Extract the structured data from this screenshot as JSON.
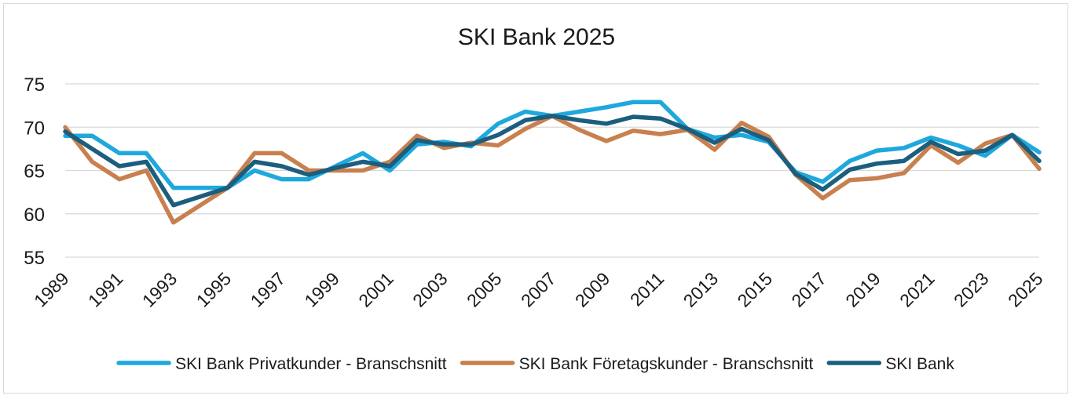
{
  "chart_data": {
    "type": "line",
    "title": "SKI Bank 2025",
    "xlabel": "",
    "ylabel": "",
    "ylim": [
      55,
      75
    ],
    "yticks": [
      55,
      60,
      65,
      70,
      75
    ],
    "grid": true,
    "legend_position": "bottom",
    "x": [
      1989,
      1990,
      1991,
      1992,
      1993,
      1994,
      1995,
      1996,
      1997,
      1998,
      1999,
      2000,
      2001,
      2002,
      2003,
      2004,
      2005,
      2006,
      2007,
      2008,
      2009,
      2010,
      2011,
      2012,
      2013,
      2014,
      2015,
      2016,
      2017,
      2018,
      2019,
      2020,
      2021,
      2022,
      2023,
      2024,
      2025
    ],
    "xtick_labels": [
      "1989",
      "1991",
      "1993",
      "1995",
      "1997",
      "1999",
      "2001",
      "2003",
      "2005",
      "2007",
      "2009",
      "2011",
      "2013",
      "2015",
      "2017",
      "2019",
      "2021",
      "2023",
      "2025"
    ],
    "series": [
      {
        "name": "SKI Bank Privatkunder - Branschsnitt",
        "color": "#1fa8dc",
        "values": [
          69,
          69,
          67,
          67,
          63,
          63,
          63,
          65,
          64,
          64,
          65.5,
          67,
          65,
          68,
          68.3,
          67.8,
          70.4,
          71.8,
          71.3,
          71.8,
          72.3,
          72.9,
          72.9,
          69.8,
          68.8,
          69.1,
          68.3,
          64.8,
          63.7,
          66.1,
          67.3,
          67.6,
          68.8,
          67.9,
          66.7,
          69.1,
          67.1
        ]
      },
      {
        "name": "SKI Bank Företagskunder - Branschsnitt",
        "color": "#c8804f",
        "values": [
          70,
          66,
          64,
          65,
          59,
          61,
          63,
          67,
          67,
          65,
          65,
          65,
          66,
          69,
          67.6,
          68.2,
          67.9,
          69.8,
          71.3,
          69.7,
          68.4,
          69.6,
          69.2,
          69.7,
          67.4,
          70.5,
          68.9,
          64.5,
          61.8,
          63.9,
          64.1,
          64.7,
          67.9,
          65.9,
          68.1,
          69.1,
          65.2
        ]
      },
      {
        "name": "SKI Bank",
        "color": "#1b5e7e",
        "values": [
          69.5,
          67.5,
          65.5,
          66,
          61,
          62,
          63,
          66,
          65.5,
          64.5,
          65.3,
          66,
          65.5,
          68.5,
          68,
          68,
          69.1,
          70.8,
          71.3,
          70.8,
          70.4,
          71.2,
          71,
          69.8,
          68.2,
          69.8,
          68.5,
          64.6,
          62.8,
          65.1,
          65.8,
          66.1,
          68.3,
          66.9,
          67.3,
          69.1,
          66.1
        ]
      }
    ]
  }
}
